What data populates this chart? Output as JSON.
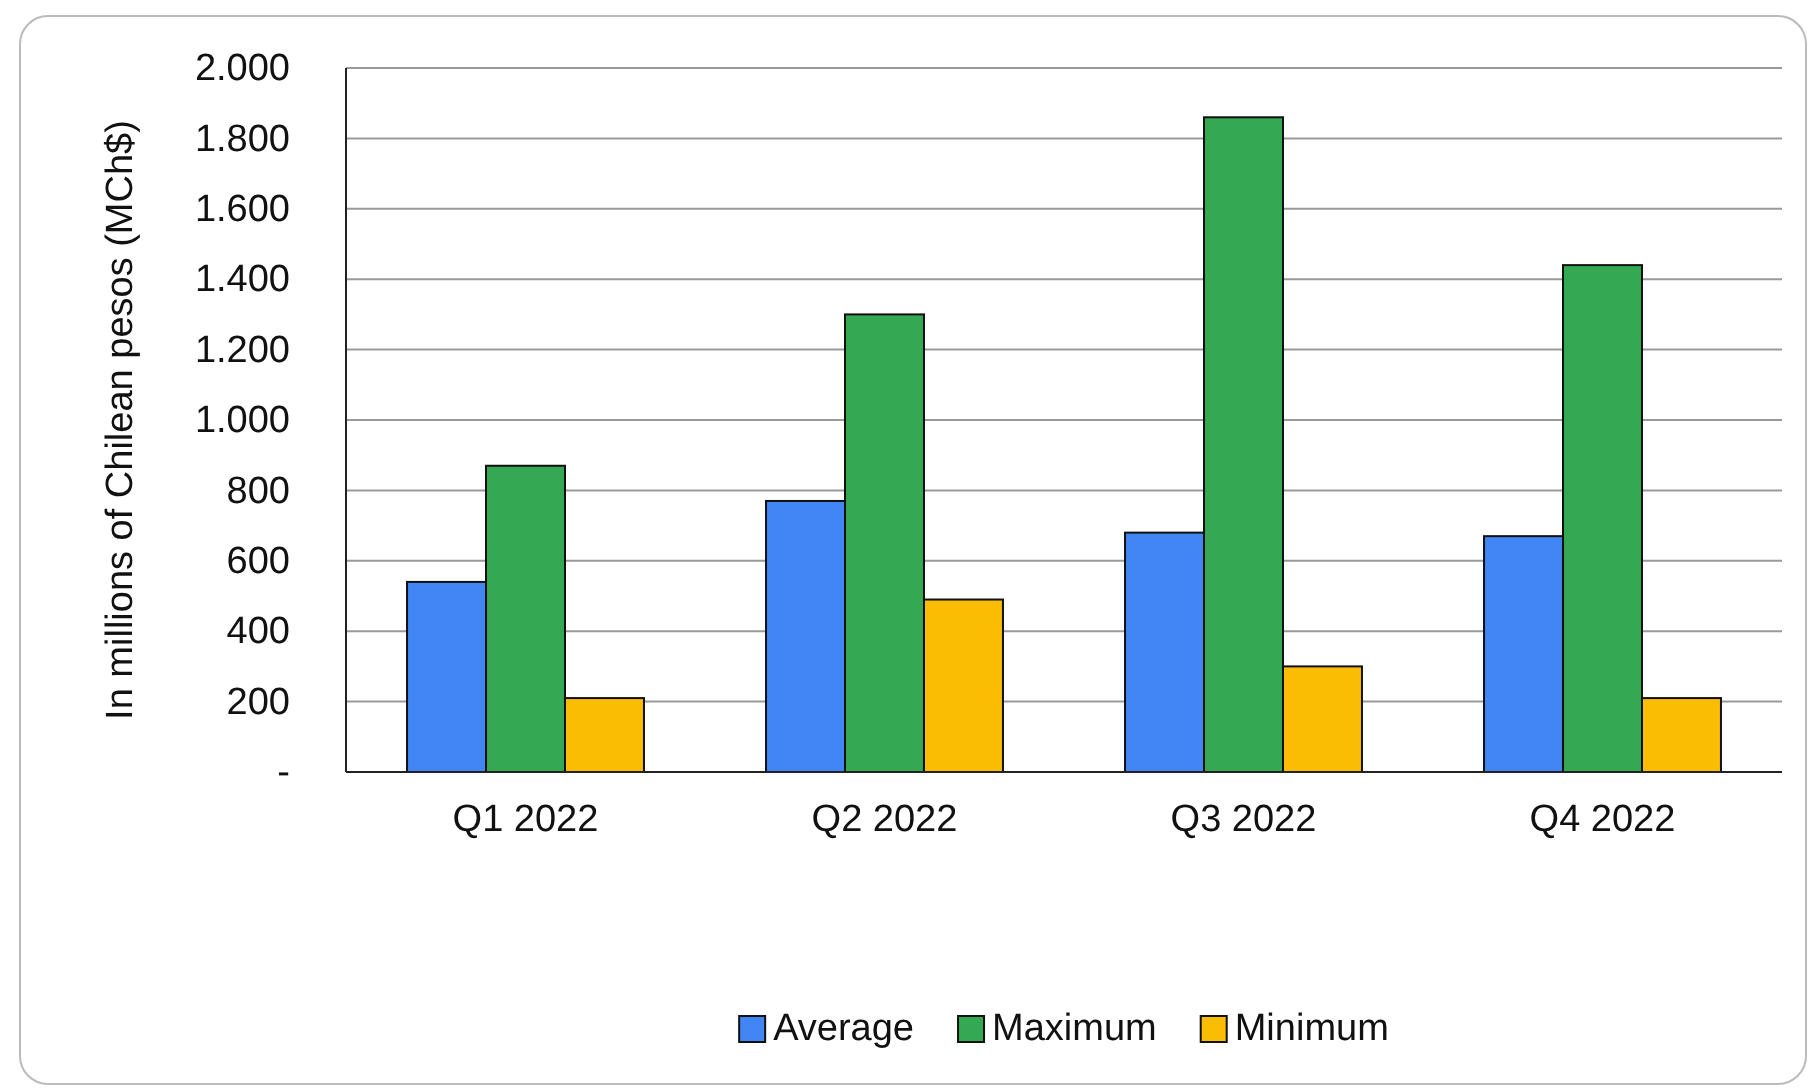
{
  "chart_data": {
    "type": "bar",
    "ylabel": "In millions of Chilean pesos (MCh$)",
    "categories": [
      "Q1 2022",
      "Q2 2022",
      "Q3 2022",
      "Q4 2022"
    ],
    "series": [
      {
        "name": "Average",
        "color": "#4285f4",
        "values": [
          540,
          770,
          680,
          670
        ]
      },
      {
        "name": "Maximum",
        "color": "#34a853",
        "values": [
          870,
          1300,
          1860,
          1440
        ]
      },
      {
        "name": "Minimum",
        "color": "#fbbc04",
        "values": [
          210,
          490,
          300,
          210
        ]
      }
    ],
    "ylim": [
      0,
      2000
    ],
    "yticks": [
      {
        "value": 0,
        "label": "-"
      },
      {
        "value": 200,
        "label": "200"
      },
      {
        "value": 400,
        "label": "400"
      },
      {
        "value": 600,
        "label": "600"
      },
      {
        "value": 800,
        "label": "800"
      },
      {
        "value": 1000,
        "label": "1.000"
      },
      {
        "value": 1200,
        "label": "1.200"
      },
      {
        "value": 1400,
        "label": "1.400"
      },
      {
        "value": 1600,
        "label": "1.600"
      },
      {
        "value": 1800,
        "label": "1.800"
      },
      {
        "value": 2000,
        "label": "2.000"
      }
    ],
    "grid": "y",
    "legend": "bottom"
  }
}
